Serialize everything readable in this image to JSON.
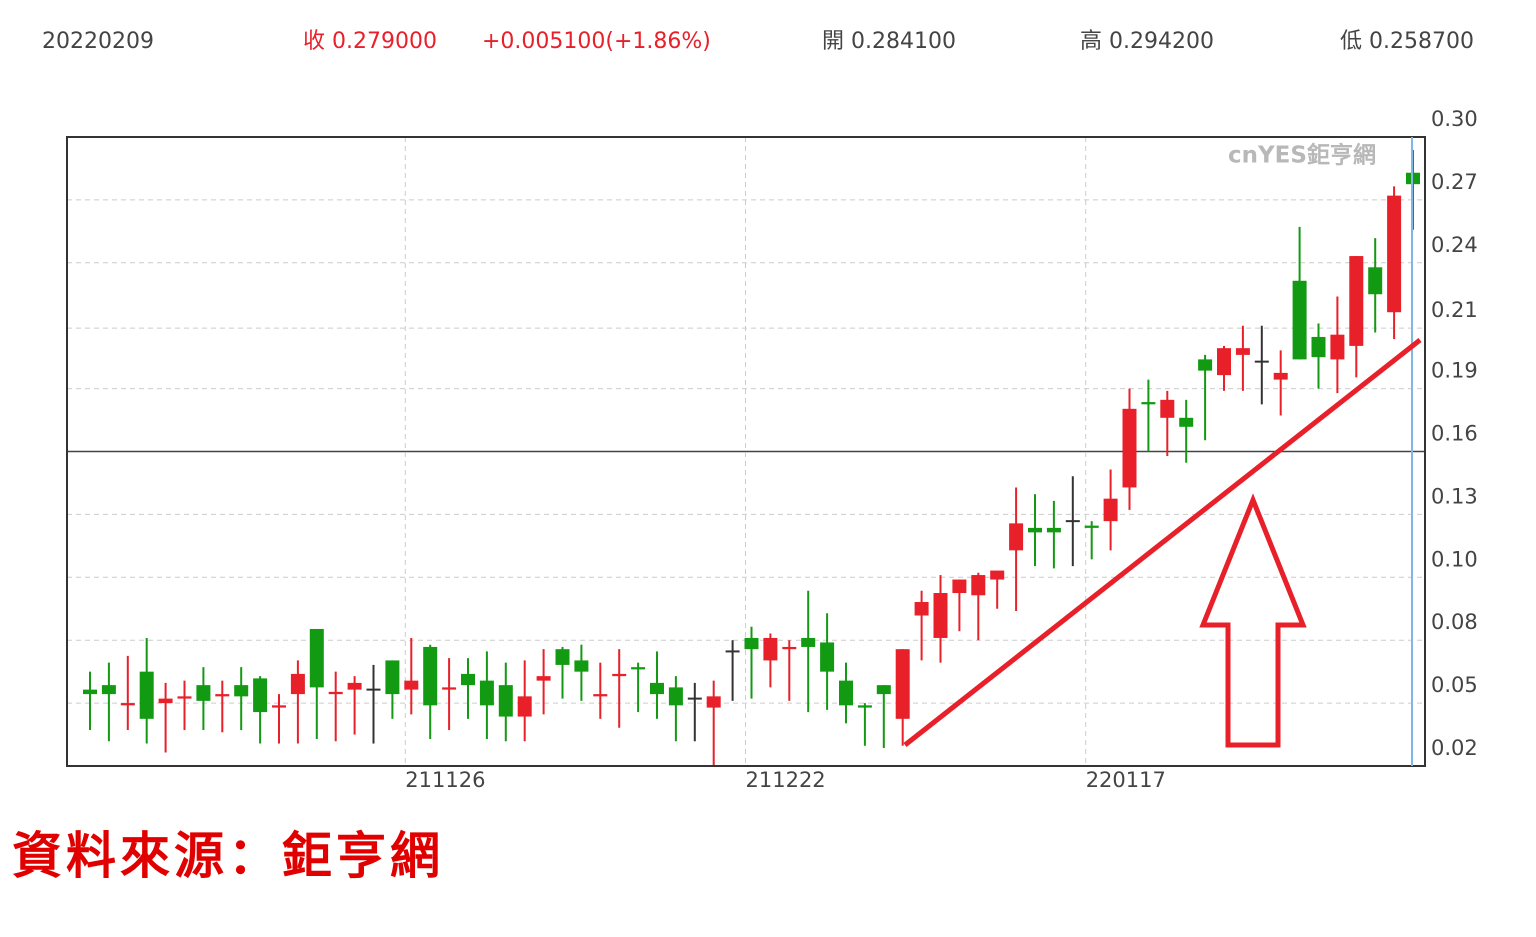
{
  "header": {
    "date": "20220209",
    "close": "收 0.279000",
    "change": "+0.005100(+1.86%)",
    "open": "開 0.284100",
    "high": "高 0.294200",
    "low": "低 0.258700"
  },
  "watermark": "cnYES鉅亨網",
  "source": "資料來源：鉅亨網",
  "chart_data": {
    "type": "candlestick",
    "categories": [
      null,
      null,
      null,
      null,
      null,
      null,
      null,
      null,
      null,
      null,
      null,
      null,
      null,
      null,
      null,
      null,
      null,
      "211126",
      null,
      null,
      null,
      null,
      null,
      null,
      null,
      null,
      null,
      null,
      null,
      null,
      null,
      null,
      null,
      null,
      null,
      "211222",
      null,
      null,
      null,
      null,
      null,
      null,
      null,
      null,
      null,
      null,
      null,
      null,
      null,
      null,
      null,
      null,
      null,
      "220117",
      null,
      null,
      null,
      null,
      null,
      null,
      null,
      null,
      null,
      null,
      null,
      null,
      null,
      null,
      null,
      null,
      null
    ],
    "open": [
      0.054,
      0.056,
      0.047,
      0.062,
      0.048,
      0.05,
      0.056,
      0.051,
      0.056,
      0.059,
      0.046,
      0.052,
      0.081,
      0.052,
      0.054,
      0.054,
      0.067,
      0.054,
      0.073,
      0.054,
      0.061,
      0.058,
      0.056,
      0.042,
      0.058,
      0.072,
      0.067,
      0.051,
      0.06,
      0.064,
      0.057,
      0.055,
      0.05,
      0.046,
      0.071,
      0.077,
      0.067,
      0.072,
      0.077,
      0.075,
      0.058,
      0.047,
      0.056,
      0.041,
      0.087,
      0.077,
      0.097,
      0.096,
      0.103,
      0.116,
      0.126,
      0.126,
      0.129,
      0.127,
      0.129,
      0.144,
      0.182,
      0.175,
      0.175,
      0.201,
      0.194,
      0.203,
      0.2,
      0.192,
      0.236,
      0.211,
      0.201,
      0.207,
      0.242,
      0.222,
      0.2841
    ],
    "high": [
      0.062,
      0.066,
      0.069,
      0.077,
      0.057,
      0.058,
      0.064,
      0.058,
      0.064,
      0.06,
      0.052,
      0.067,
      0.081,
      0.062,
      0.06,
      0.065,
      0.067,
      0.077,
      0.074,
      0.068,
      0.068,
      0.071,
      0.066,
      0.067,
      0.072,
      0.073,
      0.074,
      0.066,
      0.072,
      0.066,
      0.071,
      0.06,
      0.057,
      0.058,
      0.076,
      0.082,
      0.079,
      0.076,
      0.098,
      0.088,
      0.066,
      0.048,
      0.056,
      0.072,
      0.098,
      0.105,
      0.103,
      0.106,
      0.106,
      0.144,
      0.141,
      0.138,
      0.149,
      0.129,
      0.152,
      0.188,
      0.192,
      0.187,
      0.183,
      0.203,
      0.207,
      0.216,
      0.216,
      0.205,
      0.26,
      0.217,
      0.229,
      0.247,
      0.255,
      0.278,
      0.2942
    ],
    "low": [
      0.036,
      0.031,
      0.036,
      0.03,
      0.026,
      0.036,
      0.036,
      0.035,
      0.036,
      0.03,
      0.03,
      0.03,
      0.032,
      0.031,
      0.034,
      0.03,
      0.041,
      0.043,
      0.032,
      0.036,
      0.041,
      0.032,
      0.031,
      0.031,
      0.043,
      0.05,
      0.049,
      0.041,
      0.037,
      0.044,
      0.041,
      0.031,
      0.031,
      0.02,
      0.049,
      0.05,
      0.055,
      0.049,
      0.044,
      0.045,
      0.039,
      0.029,
      0.028,
      0.029,
      0.067,
      0.066,
      0.08,
      0.076,
      0.09,
      0.089,
      0.109,
      0.108,
      0.109,
      0.112,
      0.116,
      0.134,
      0.16,
      0.158,
      0.155,
      0.165,
      0.187,
      0.187,
      0.181,
      0.176,
      0.201,
      0.188,
      0.186,
      0.193,
      0.213,
      0.21,
      0.2587
    ],
    "close": [
      0.052,
      0.052,
      0.048,
      0.041,
      0.05,
      0.051,
      0.049,
      0.052,
      0.051,
      0.044,
      0.047,
      0.061,
      0.055,
      0.053,
      0.057,
      0.054,
      0.052,
      0.058,
      0.047,
      0.055,
      0.056,
      0.047,
      0.042,
      0.051,
      0.06,
      0.065,
      0.062,
      0.052,
      0.061,
      0.063,
      0.052,
      0.047,
      0.05,
      0.051,
      0.071,
      0.072,
      0.077,
      0.073,
      0.073,
      0.062,
      0.047,
      0.046,
      0.052,
      0.072,
      0.093,
      0.097,
      0.103,
      0.105,
      0.107,
      0.128,
      0.124,
      0.124,
      0.129,
      0.126,
      0.139,
      0.179,
      0.181,
      0.183,
      0.171,
      0.196,
      0.206,
      0.206,
      0.2,
      0.195,
      0.201,
      0.202,
      0.212,
      0.247,
      0.23,
      0.2739,
      0.279
    ],
    "up_color": "#e8202a",
    "down_color": "#139a13",
    "flat_color": "#333333",
    "ylim": [
      0.02,
      0.3
    ],
    "yticks": [
      0.02,
      {
        "value": 0.048,
        "label": "0.05"
      },
      {
        "value": 0.076,
        "label": "0.08"
      },
      {
        "value": 0.104,
        "label": "0.10"
      },
      {
        "value": 0.132,
        "label": "0.13"
      },
      0.16,
      {
        "value": 0.188,
        "label": "0.19"
      },
      {
        "value": 0.2149,
        "label": "0.21"
      },
      {
        "value": 0.244,
        "label": "0.24"
      },
      {
        "value": 0.272,
        "label": "0.27"
      },
      {
        "value": 0.3,
        "label": "0.30"
      }
    ],
    "reference_line": 0.16,
    "grid": true
  }
}
